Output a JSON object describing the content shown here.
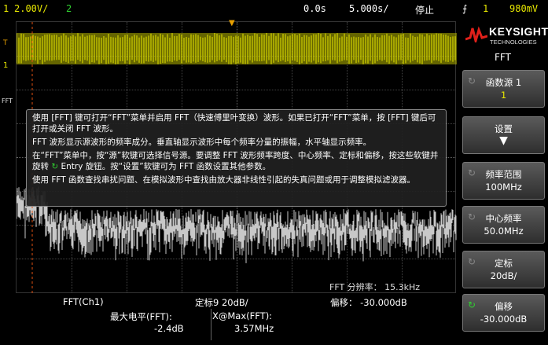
{
  "topbar": {
    "ch1_num": "1",
    "ch1_scale": "2.00V/",
    "ch2_num": "2",
    "time_pos": "0.0s",
    "time_scale": "5.000s/",
    "run_state": "停止",
    "trig_ch": "1",
    "trig_level": "980mV"
  },
  "brand": {
    "name": "KEYSIGHT",
    "sub": "TECHNOLOGIES"
  },
  "menu": {
    "title": "FFT"
  },
  "softkeys": [
    {
      "label": "函数源 1",
      "value": "1"
    },
    {
      "label": "设置",
      "value": ""
    },
    {
      "label": "频率范围",
      "value": "100MHz"
    },
    {
      "label": "中心频率",
      "value": "50.0MHz"
    },
    {
      "label": "定标",
      "value": "20dB/"
    },
    {
      "label": "偏移",
      "value": "-30.000dB"
    }
  ],
  "help": {
    "p1": "使用 [FFT] 键可打开“FFT”菜单并启用 FFT（快速傅里叶变换）波形。如果已打开“FFT”菜单，按 [FFT] 键后可打开或关闭 FFT 波形。",
    "p2": "FFT 波形显示源波形的频率成分。垂直轴显示波形中每个频率分量的振幅，水平轴显示频率。",
    "p3a": "在“FFT”菜单中，按“源”软键可选择信号源。要调整 FFT 波形频率跨度、中心频率、定标和偏移，按这些软键并旋转",
    "p3b": "Entry 旋钮。按“设置”软键可为 FFT 函数设置其他参数。",
    "p4": "使用 FFT 函数查找串扰问题、在模拟波形中查找由放大器非线性引起的失真问题或用于调整模拟滤波器。"
  },
  "screen": {
    "resolution": "FFT 分辨率： 15.3kHz",
    "marker_1": "1",
    "marker_fft": "FFT"
  },
  "bottom": {
    "fft_label": "FFT(Ch1)",
    "scale": "定标9 20dB/",
    "offset": "偏移： -30.000dB",
    "meas1_label": "最大电平(FFT):",
    "meas1_value": "-2.4dB",
    "meas2_label": "X@Max(FFT):",
    "meas2_value": "3.57MHz"
  },
  "colors": {
    "ch1": "#e8e800",
    "fft": "#c8c8c8",
    "accent": "#e05010",
    "ch2": "#30d030"
  }
}
